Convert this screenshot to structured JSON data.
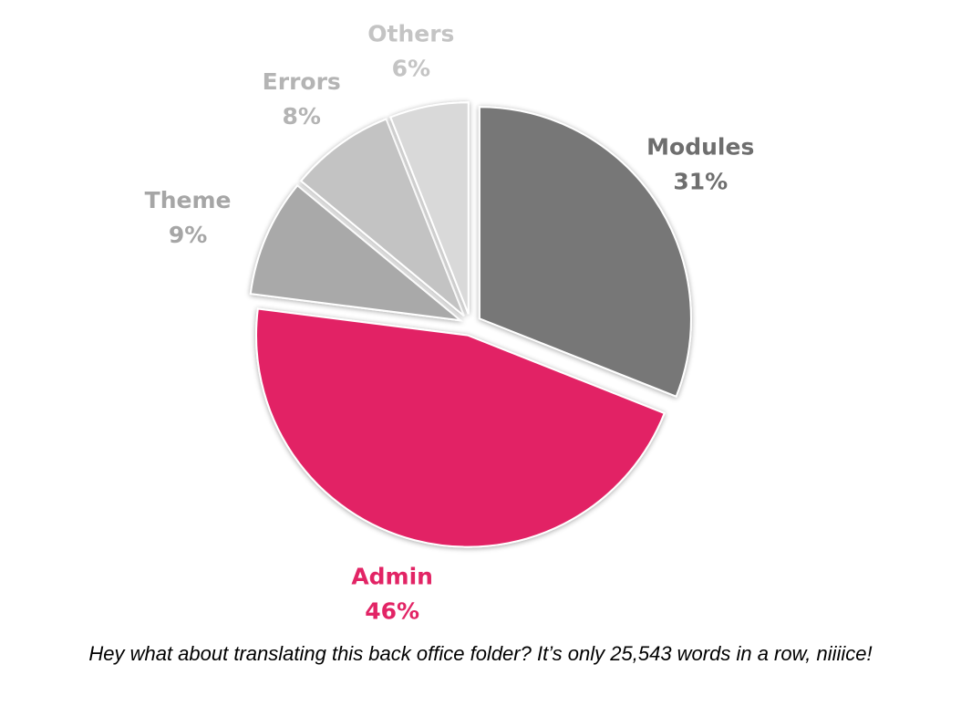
{
  "chart_data": {
    "type": "pie",
    "title": "",
    "slices": [
      {
        "name": "Modules",
        "value": 31,
        "label": "31%",
        "color": "#777777",
        "label_color": "#6e6e6e"
      },
      {
        "name": "Admin",
        "value": 46,
        "label": "46%",
        "color": "#e22465",
        "label_color": "#e22465"
      },
      {
        "name": "Theme",
        "value": 9,
        "label": "9%",
        "color": "#a9a9a9",
        "label_color": "#a6a6a6"
      },
      {
        "name": "Errors",
        "value": 8,
        "label": "8%",
        "color": "#c3c3c3",
        "label_color": "#b4b4b4"
      },
      {
        "name": "Others",
        "value": 6,
        "label": "6%",
        "color": "#d9d9d9",
        "label_color": "#c4c4c4"
      }
    ],
    "legend": "none",
    "start_angle": "12 o'clock",
    "direction": "clockwise",
    "exploded": true
  },
  "caption": "Hey what about translating this back office folder? It’s only 25,543 words in a row, niiiice!"
}
